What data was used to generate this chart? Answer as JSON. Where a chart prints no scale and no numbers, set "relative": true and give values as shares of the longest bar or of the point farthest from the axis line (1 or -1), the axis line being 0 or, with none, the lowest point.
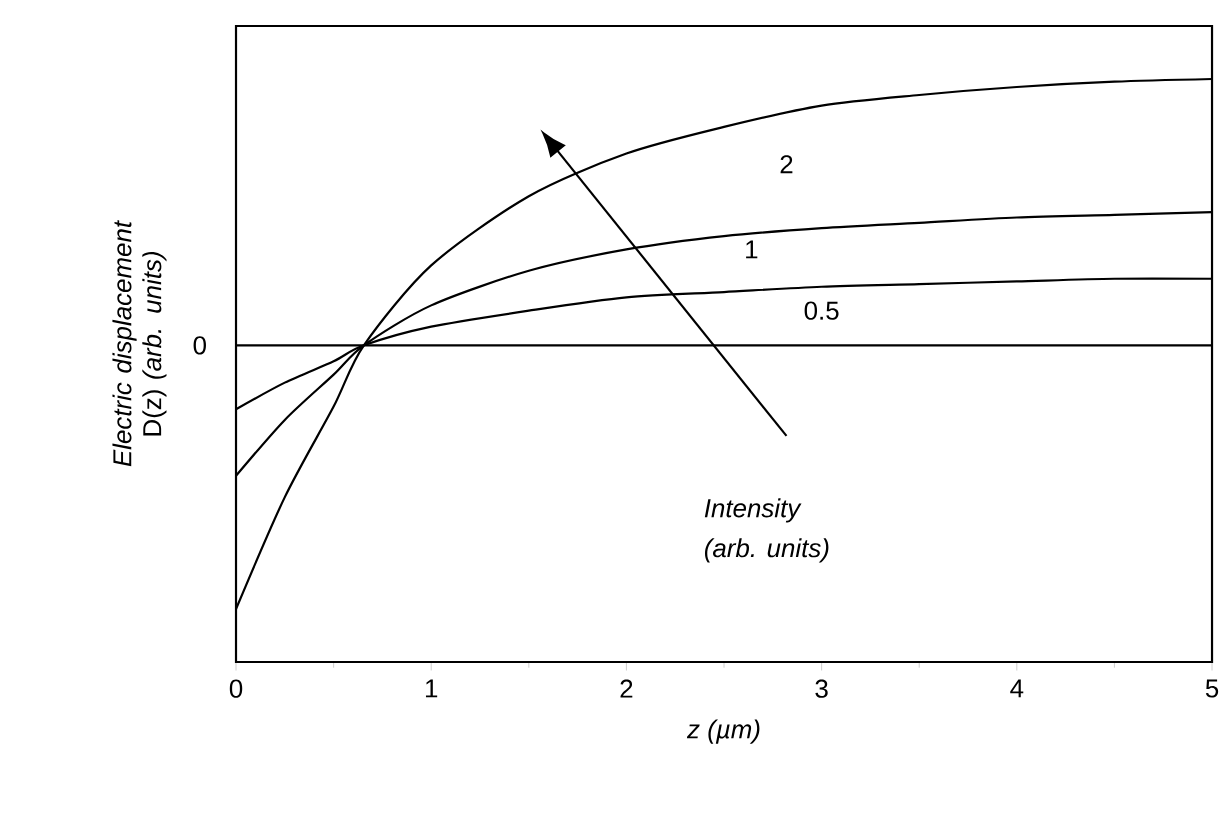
{
  "chart_data": {
    "type": "line",
    "relative": true,
    "xlabel": "*z (µm)*",
    "ylabel": "*Electric displacement* D(z) *(arb. units)*",
    "x": [
      0,
      0.25,
      0.5,
      0.655,
      1,
      1.5,
      2,
      2.5,
      3,
      3.5,
      4,
      4.5,
      5
    ],
    "xlim": [
      0,
      5
    ],
    "xticks": [
      0,
      1,
      2,
      3,
      4,
      5
    ],
    "series": [
      {
        "name": "2",
        "color": "#000000",
        "values": [
          -0.99,
          -0.57,
          -0.23,
          0,
          0.3,
          0.56,
          0.72,
          0.82,
          0.9,
          0.94,
          0.97,
          0.99,
          1
        ]
      },
      {
        "name": "1",
        "color": "#000000",
        "values": [
          -0.49,
          -0.28,
          -0.11,
          0,
          0.15,
          0.28,
          0.36,
          0.41,
          0.44,
          0.46,
          0.48,
          0.49,
          0.5
        ]
      },
      {
        "name": "0.5",
        "color": "#000000",
        "values": [
          -0.24,
          -0.14,
          -0.06,
          0,
          0.07,
          0.13,
          0.18,
          0.2,
          0.22,
          0.23,
          0.24,
          0.25,
          0.25
        ]
      }
    ],
    "annotations": [
      "0",
      "Intensity",
      "(arb. units)"
    ],
    "grid": false,
    "marker": "none",
    "line_style": "solid"
  }
}
